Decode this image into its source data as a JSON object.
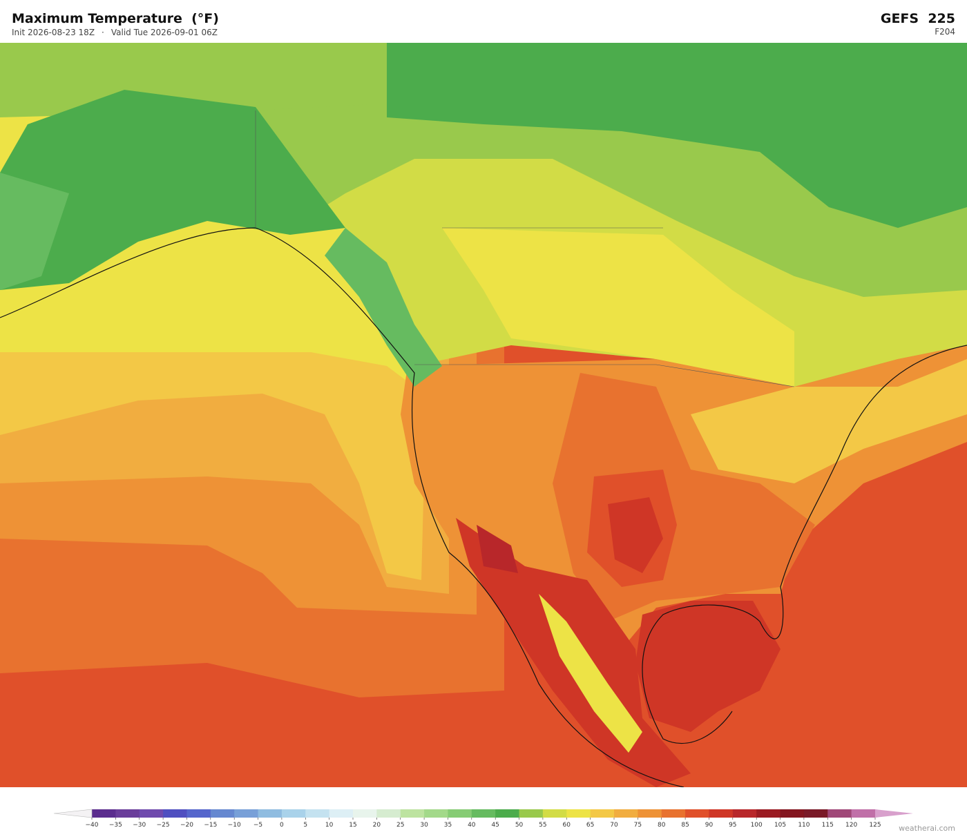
{
  "header": {
    "title": "Maximum Temperature  (°F)",
    "init": "Init 2026-08-23 18Z",
    "separator": "·",
    "valid": "Valid Tue 2026-09-01 06Z",
    "model": "GEFS  225",
    "forecast_hour": "F204"
  },
  "colorbar": {
    "ticks": [
      {
        "value": -40,
        "label": "−40"
      },
      {
        "value": -35,
        "label": "−35"
      },
      {
        "value": -30,
        "label": "−30"
      },
      {
        "value": -25,
        "label": "−25"
      },
      {
        "value": -20,
        "label": "−20"
      },
      {
        "value": -15,
        "label": "−15"
      },
      {
        "value": -10,
        "label": "−10"
      },
      {
        "value": -5,
        "label": "−5"
      },
      0,
      5,
      10,
      15,
      20,
      25,
      30,
      35,
      40,
      45,
      50,
      55,
      60,
      65,
      70,
      75,
      80,
      85,
      90,
      95,
      100,
      105,
      110,
      115,
      120,
      125
    ],
    "colors": [
      "#5b2d8e",
      "#6a3d9a",
      "#6f4aad",
      "#4f4fc0",
      "#5566cc",
      "#6688d0",
      "#78a0d8",
      "#8fbce0",
      "#a9d2ea",
      "#c4e2f0",
      "#ddeff5",
      "#e8f4ec",
      "#d6ecd0",
      "#bde3a0",
      "#a3d98a",
      "#86cc74",
      "#66bb60",
      "#4cac4c",
      "#99c94c",
      "#d2dc46",
      "#ede346",
      "#f3c846",
      "#f1ad40",
      "#ee9236",
      "#e8722f",
      "#e0502a",
      "#cf3626",
      "#b8272a",
      "#9b1b22",
      "#841620",
      "#7a1a28",
      "#a04878",
      "#c070a8"
    ],
    "under_color": "#f4f2f4",
    "over_color": "#d8a0cc"
  },
  "footer": {
    "credit": "weatherai.com"
  }
}
